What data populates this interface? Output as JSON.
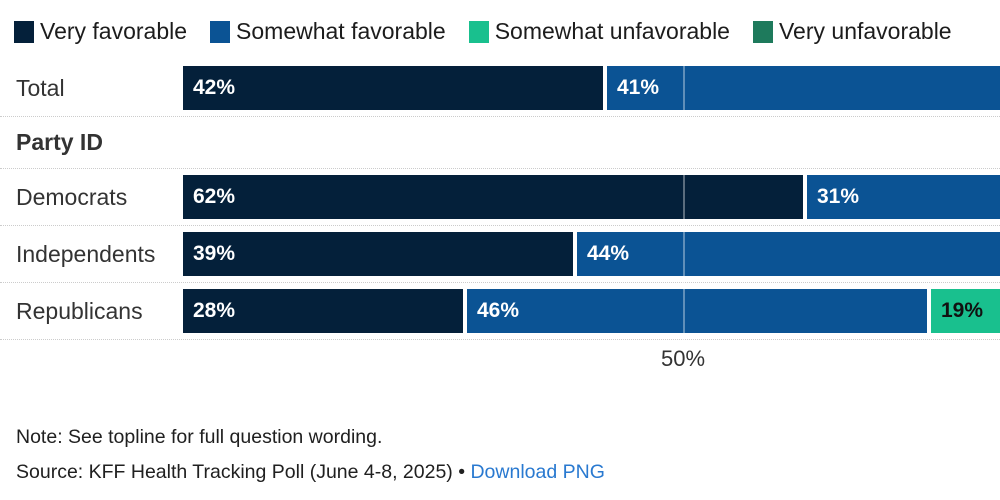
{
  "chart_data": {
    "type": "bar",
    "orientation": "horizontal",
    "stacked": true,
    "legend_position": "top",
    "grid": "50% vertical gridline, dotted row separators",
    "xlim": [
      0,
      100
    ],
    "x_tick_label": "50%",
    "x_tick_value": 50,
    "bars_clipped_at_right_edge": true,
    "categories": [
      "Total",
      "Democrats",
      "Independents",
      "Republicans"
    ],
    "group_label": "Party ID",
    "group_starts_at": 1,
    "series": [
      {
        "name": "Very favorable",
        "color": "#04203a",
        "label_color": "#ffffff",
        "values": [
          42,
          62,
          39,
          28
        ],
        "labels": [
          "42%",
          "62%",
          "39%",
          "28%"
        ]
      },
      {
        "name": "Somewhat favorable",
        "color": "#0b5394",
        "label_color": "#ffffff",
        "values": [
          41,
          31,
          44,
          46
        ],
        "labels": [
          "41%",
          "31%",
          "44%",
          "46%"
        ]
      },
      {
        "name": "Somewhat unfavorable",
        "color": "#19c08e",
        "label_color": "#111111",
        "values": [
          null,
          null,
          null,
          19
        ],
        "labels": [
          null,
          null,
          null,
          "19%"
        ]
      },
      {
        "name": "Very unfavorable",
        "color": "#1e7a5c",
        "label_color": "#ffffff",
        "values": [
          null,
          null,
          null,
          null
        ],
        "labels": [
          null,
          null,
          null,
          null
        ]
      }
    ]
  },
  "footer": {
    "note": "Note: See topline for full question wording.",
    "source": "Source: KFF Health Tracking Poll (June 4-8, 2025) •",
    "download_label": "Download PNG"
  },
  "colors": {
    "link": "#2979d0",
    "row_label_text": "#333333",
    "legend_text": "#1c1c1c",
    "separator": "#cccccc"
  }
}
